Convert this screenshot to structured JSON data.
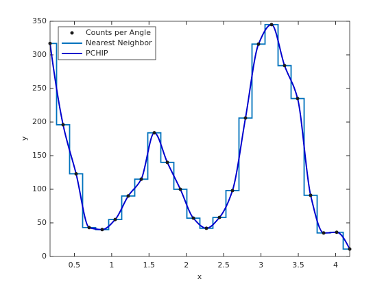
{
  "chart_data": {
    "type": "line",
    "xlabel": "x",
    "ylabel": "y",
    "x": [
      0.1745,
      0.3491,
      0.5236,
      0.6981,
      0.8727,
      1.0472,
      1.2217,
      1.3963,
      1.5708,
      1.7453,
      1.9199,
      2.0944,
      2.2689,
      2.4435,
      2.618,
      2.7925,
      2.9671,
      3.1416,
      3.3161,
      3.4907,
      3.6652,
      3.8397,
      4.0143,
      4.1888
    ],
    "series": [
      {
        "name": "Counts per Angle",
        "color": "#1a1a1a",
        "style": "markers",
        "values": [
          317,
          196,
          123,
          43,
          40,
          55,
          90,
          115,
          184,
          140,
          100,
          57,
          42,
          58,
          98,
          206,
          316,
          345,
          284,
          235,
          91,
          35,
          36,
          11
        ]
      },
      {
        "name": "Nearest Neighbor",
        "color": "#0072bd",
        "style": "nearest"
      },
      {
        "name": "PCHIP",
        "color": "#0000cd",
        "style": "pchip"
      }
    ],
    "xlim": [
      0.1745,
      4.1888
    ],
    "xticks": [
      0.5,
      1,
      1.5,
      2,
      2.5,
      3,
      3.5,
      4
    ],
    "ylim": [
      0,
      350
    ],
    "yticks": [
      0,
      50,
      100,
      150,
      200,
      250,
      300,
      350
    ],
    "legend": "top-left"
  }
}
